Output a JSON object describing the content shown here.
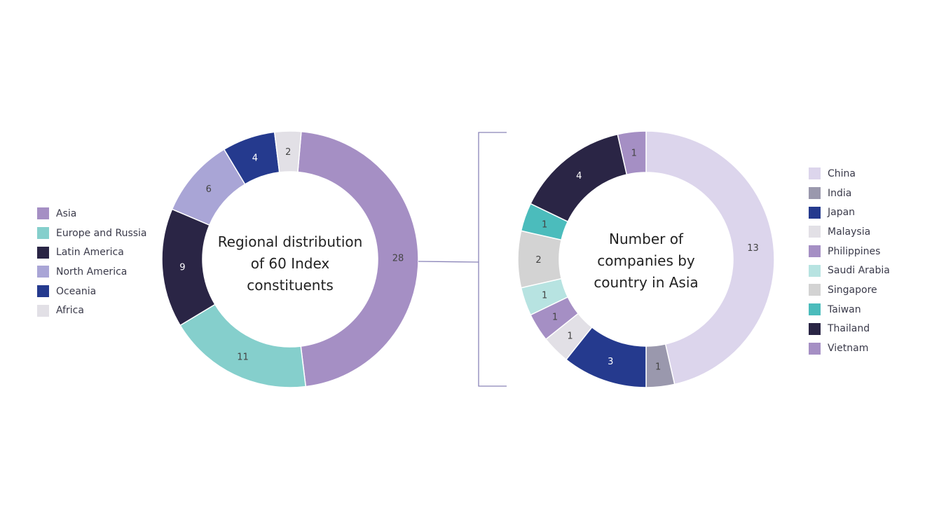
{
  "chart_data": [
    {
      "type": "pie",
      "donut": true,
      "title": "Regional distribution of 60 Index constituents",
      "categories": [
        "Asia",
        "Europe and Russia",
        "Latin America",
        "North America",
        "Oceania",
        "Africa"
      ],
      "values": [
        28,
        11,
        9,
        6,
        4,
        2
      ],
      "colors": [
        "#a58fc4",
        "#85cfcc",
        "#2a2545",
        "#a9a5d6",
        "#253a8e",
        "#e2e0e6"
      ],
      "legend": "left"
    },
    {
      "type": "pie",
      "donut": true,
      "title": "Number of companies by country in Asia",
      "categories": [
        "China",
        "India",
        "Japan",
        "Malaysia",
        "Philippines",
        "Saudi Arabia",
        "Singapore",
        "Taiwan",
        "Thailand",
        "Vietnam"
      ],
      "values": [
        13,
        1,
        3,
        1,
        1,
        1,
        2,
        1,
        4,
        1
      ],
      "colors": [
        "#dcd5ec",
        "#9a98ad",
        "#253a8e",
        "#e2e0e6",
        "#a58fc4",
        "#b7e3e1",
        "#d3d3d3",
        "#4bbcbc",
        "#2a2545",
        "#a58fc4"
      ],
      "legend": "right"
    }
  ]
}
